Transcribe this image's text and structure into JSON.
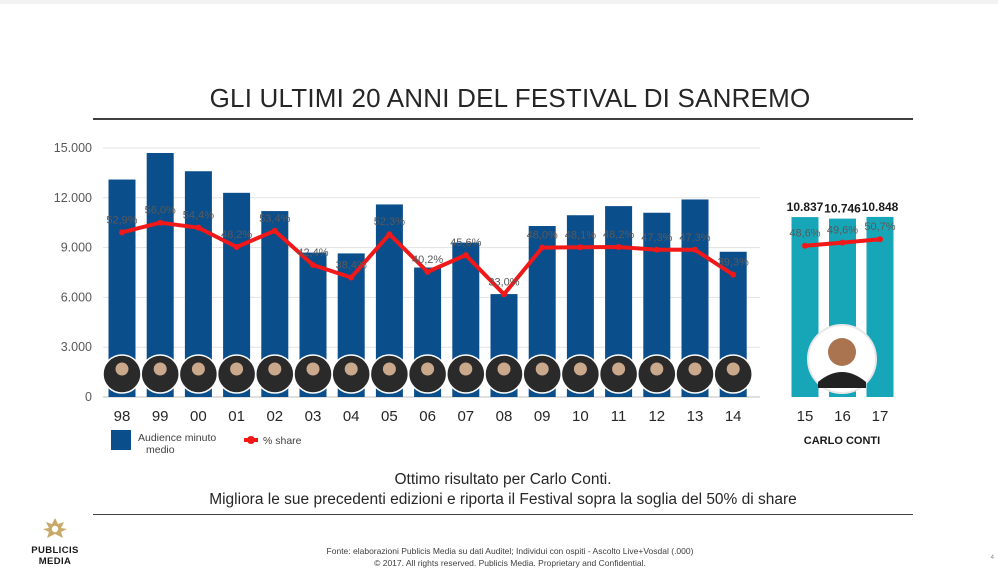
{
  "slide": {
    "title": "GLI ULTIMI 20 ANNI DEL FESTIVAL DI SANREMO",
    "caption_line1": "Ottimo risultato per Carlo Conti.",
    "caption_line2": "Migliora le sue precedenti edizioni e riporta il Festival sopra la soglia del 50% di share",
    "source_line1": "Fonte: elaborazioni Publicis Media su dati Auditel; Individui con ospiti  - Ascolto Live+Vosdal (.000)",
    "source_line2": "© 2017. All rights reserved. Publicis Media. Proprietary and Confidential.",
    "logo_line1": "PUBLICIS",
    "logo_line2": "MEDIA",
    "page_number": "4"
  },
  "chart_data": {
    "type": "bar",
    "title": "GLI ULTIMI 20 ANNI DEL FESTIVAL DI SANREMO",
    "categories": [
      "98",
      "99",
      "00",
      "01",
      "02",
      "03",
      "04",
      "05",
      "06",
      "07",
      "08",
      "09",
      "10",
      "11",
      "12",
      "13",
      "14",
      "15",
      "16",
      "17"
    ],
    "series": [
      {
        "name": "Audience minuto medio",
        "axis": "left",
        "values": [
          13100,
          14700,
          13600,
          12300,
          11200,
          8700,
          8650,
          11600,
          7800,
          9300,
          6200,
          10300,
          10950,
          11500,
          11100,
          11900,
          8750,
          10837,
          10746,
          10848
        ]
      },
      {
        "name": "% share",
        "axis": "right",
        "type": "line",
        "values": [
          52.9,
          56.0,
          54.4,
          48.2,
          53.4,
          42.4,
          38.4,
          52.3,
          40.2,
          45.6,
          33.0,
          48.0,
          48.1,
          48.2,
          47.3,
          47.3,
          39.3,
          48.6,
          49.6,
          50.7
        ]
      }
    ],
    "share_labels": [
      "52,9%",
      "56,0%",
      "54,4%",
      "48,2%",
      "53,4%",
      "42,4%",
      "38,4%",
      "52,3%",
      "40,2%",
      "45,6%",
      "33,0%",
      "48,0%",
      "48,1%",
      "48,2%",
      "47,3%",
      "47,3%",
      "39,3%",
      "48,6%",
      "49,6%",
      "50,7%"
    ],
    "value_labels_conti": [
      "10.837",
      "10.746",
      "10.848"
    ],
    "yticks": [
      "0",
      "3.000",
      "6.000",
      "9.000",
      "12.000",
      "15.000"
    ],
    "ylim": [
      0,
      15000
    ],
    "y2lim": [
      0,
      80
    ],
    "legend": [
      "Audience minuto medio",
      "% share"
    ],
    "legend_position": "bottom-left",
    "group_label": "CARLO CONTI",
    "colors": {
      "bar_main": "#0b4e8c",
      "bar_conti": "#17a5b8",
      "share_line": "#f01818",
      "axis_text": "#595959",
      "gridline": "#e3e3e3"
    }
  }
}
